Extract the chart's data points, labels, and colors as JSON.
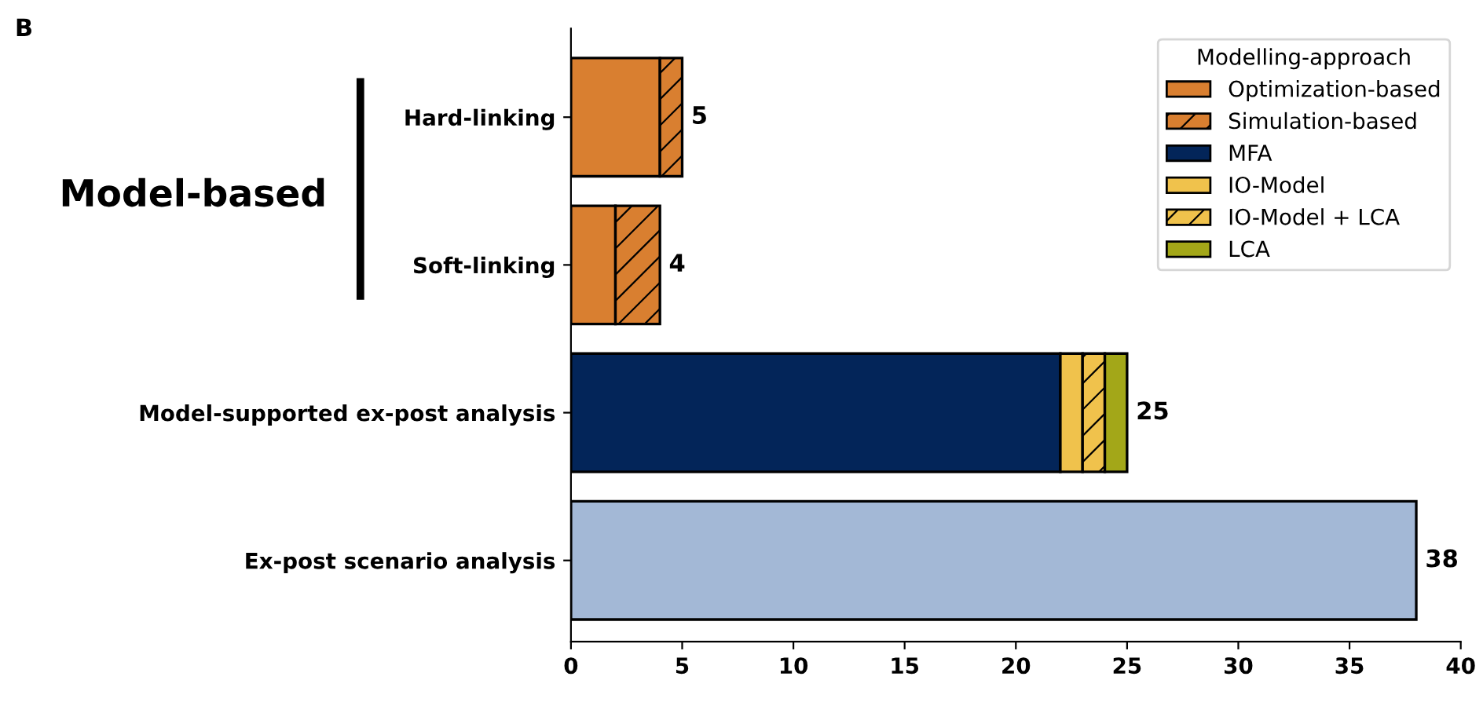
{
  "chart_data": {
    "type": "bar",
    "orientation": "horizontal",
    "stacked": true,
    "title": "B",
    "categories": [
      "Hard-linking",
      "Soft-linking",
      "Model-supported ex-post analysis",
      "Ex-post scenario analysis"
    ],
    "series": [
      {
        "name": "Optimization-based",
        "color": "#d97f30",
        "values": [
          4,
          2,
          null,
          null
        ]
      },
      {
        "name": "Simulation-based",
        "color": "#d97f30",
        "line_style": "dashed",
        "values": [
          1,
          2,
          null,
          null
        ]
      },
      {
        "name": "MFA",
        "color": "#032559",
        "values": [
          null,
          null,
          22,
          null
        ]
      },
      {
        "name": "IO-Model",
        "color": "#f0c24c",
        "values": [
          null,
          null,
          1,
          null
        ]
      },
      {
        "name": "IO-Model + LCA",
        "color": "#f0c24c",
        "line_style": "dashed",
        "values": [
          null,
          null,
          1,
          null
        ]
      },
      {
        "name": "LCA",
        "color": "#a3a718",
        "values": [
          null,
          null,
          1,
          null
        ]
      },
      {
        "color": "#a3b8d6",
        "values": [
          null,
          null,
          null,
          38
        ]
      }
    ],
    "totals": [
      "5",
      "4",
      "25",
      "38"
    ],
    "xlim": [
      0,
      40
    ],
    "xticks": [
      0,
      5,
      10,
      15,
      20,
      25,
      30,
      35,
      40
    ],
    "legend": "top right",
    "legend_title": "Modelling-approach",
    "grid": false,
    "annotations": [
      "Model-based"
    ]
  }
}
